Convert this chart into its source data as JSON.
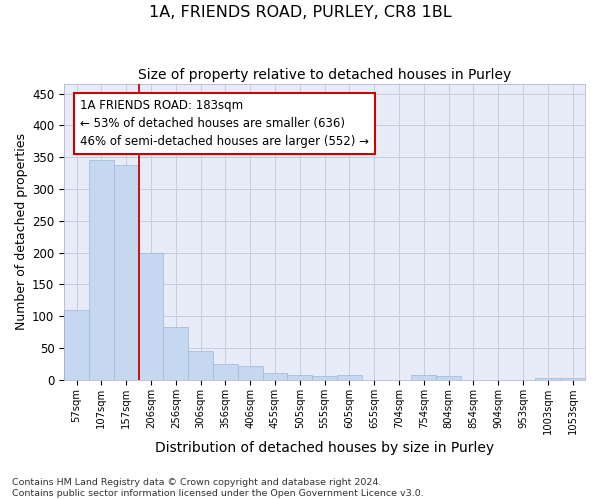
{
  "title1": "1A, FRIENDS ROAD, PURLEY, CR8 1BL",
  "title2": "Size of property relative to detached houses in Purley",
  "xlabel": "Distribution of detached houses by size in Purley",
  "ylabel": "Number of detached properties",
  "categories": [
    "57sqm",
    "107sqm",
    "157sqm",
    "206sqm",
    "256sqm",
    "306sqm",
    "356sqm",
    "406sqm",
    "455sqm",
    "505sqm",
    "555sqm",
    "605sqm",
    "655sqm",
    "704sqm",
    "754sqm",
    "804sqm",
    "854sqm",
    "904sqm",
    "953sqm",
    "1003sqm",
    "1053sqm"
  ],
  "values": [
    110,
    345,
    338,
    200,
    83,
    46,
    25,
    22,
    11,
    7,
    6,
    7,
    0,
    0,
    8,
    6,
    0,
    0,
    0,
    3,
    3
  ],
  "bar_color": "#c5d8f0",
  "bar_edge_color": "#9ab8dc",
  "vline_x": 2.5,
  "vline_color": "#cc0000",
  "annotation_line1": "1A FRIENDS ROAD: 183sqm",
  "annotation_line2": "← 53% of detached houses are smaller (636)",
  "annotation_line3": "46% of semi-detached houses are larger (552) →",
  "annotation_box_color": "white",
  "annotation_box_edge_color": "#cc0000",
  "ylim": [
    0,
    465
  ],
  "yticks": [
    0,
    50,
    100,
    150,
    200,
    250,
    300,
    350,
    400,
    450
  ],
  "grid_color": "#c8cce0",
  "background_color": "#e8ecf8",
  "footer_text": "Contains HM Land Registry data © Crown copyright and database right 2024.\nContains public sector information licensed under the Open Government Licence v3.0.",
  "title1_fontsize": 11.5,
  "title2_fontsize": 10,
  "xlabel_fontsize": 10,
  "ylabel_fontsize": 9,
  "annotation_fontsize": 8.5,
  "footer_fontsize": 6.8
}
